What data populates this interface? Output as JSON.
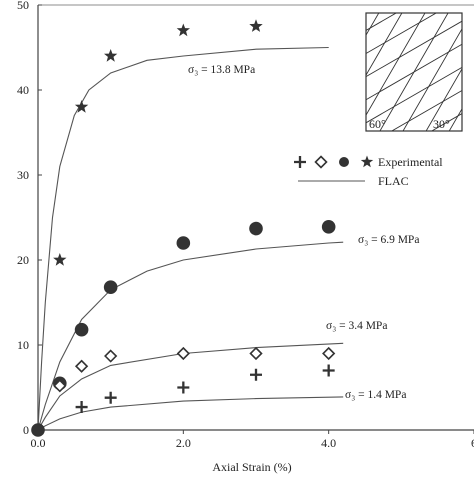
{
  "chart_data": {
    "type": "scatter",
    "xlabel": "Axial Strain (%)",
    "ylabel": "",
    "xlim": [
      0,
      6
    ],
    "ylim": [
      0,
      50
    ],
    "x_ticks": [
      0,
      2,
      4,
      6
    ],
    "x_tick_labels": [
      "0.0",
      "2.0",
      "4.0",
      "6"
    ],
    "y_ticks": [
      0,
      10,
      20,
      30,
      40,
      50
    ],
    "y_tick_labels": [
      "0",
      "10",
      "20",
      "30",
      "40",
      "50"
    ],
    "grid": false,
    "legend": {
      "position": "right",
      "entries": [
        {
          "label": "Experimental",
          "markers": [
            "plus",
            "diamond",
            "circle",
            "star"
          ]
        },
        {
          "label": "FLAC",
          "style": "line"
        }
      ]
    },
    "inset_labels": [
      "60°",
      "30°"
    ],
    "series": [
      {
        "sigma_label": "σ₃ = 13.8 MPa",
        "marker": "star",
        "experimental": [
          [
            0.3,
            20
          ],
          [
            0.6,
            38
          ],
          [
            1.0,
            44
          ],
          [
            2.0,
            47
          ],
          [
            3.0,
            47.5
          ]
        ],
        "flac": [
          [
            0,
            0
          ],
          [
            0.05,
            8
          ],
          [
            0.1,
            15
          ],
          [
            0.2,
            25
          ],
          [
            0.3,
            31
          ],
          [
            0.5,
            37
          ],
          [
            0.7,
            40
          ],
          [
            1.0,
            42
          ],
          [
            1.5,
            43.5
          ],
          [
            2.0,
            44
          ],
          [
            3.0,
            44.8
          ],
          [
            4.0,
            45
          ]
        ]
      },
      {
        "sigma_label": "σ₃ = 6.9 MPa",
        "marker": "circle",
        "experimental": [
          [
            0,
            0
          ],
          [
            0.3,
            5.5
          ],
          [
            0.6,
            11.8
          ],
          [
            1.0,
            16.8
          ],
          [
            2.0,
            22
          ],
          [
            3.0,
            23.7
          ],
          [
            4.0,
            23.9
          ]
        ],
        "flac": [
          [
            0,
            0
          ],
          [
            0.1,
            3
          ],
          [
            0.3,
            8
          ],
          [
            0.6,
            13
          ],
          [
            1.0,
            16.5
          ],
          [
            1.5,
            18.7
          ],
          [
            2.0,
            20
          ],
          [
            3.0,
            21.3
          ],
          [
            4.0,
            22
          ],
          [
            4.2,
            22.1
          ]
        ]
      },
      {
        "sigma_label": "σ₃ = 3.4 MPa",
        "marker": "diamond",
        "experimental": [
          [
            0.3,
            5.2
          ],
          [
            0.6,
            7.5
          ],
          [
            1.0,
            8.7
          ],
          [
            2.0,
            9
          ],
          [
            3.0,
            9
          ],
          [
            4.0,
            9
          ]
        ],
        "flac": [
          [
            0,
            0
          ],
          [
            0.1,
            1.5
          ],
          [
            0.3,
            4
          ],
          [
            0.6,
            6
          ],
          [
            1.0,
            7.6
          ],
          [
            2.0,
            9
          ],
          [
            3.0,
            9.7
          ],
          [
            4.2,
            10.2
          ]
        ]
      },
      {
        "sigma_label": "σ₃ = 1.4 MPa",
        "marker": "plus",
        "experimental": [
          [
            0.6,
            2.7
          ],
          [
            1.0,
            3.8
          ],
          [
            2.0,
            5
          ],
          [
            3.0,
            6.5
          ],
          [
            4.0,
            7
          ]
        ],
        "flac": [
          [
            0,
            0
          ],
          [
            0.1,
            0.5
          ],
          [
            0.3,
            1.3
          ],
          [
            0.6,
            2.1
          ],
          [
            1.0,
            2.7
          ],
          [
            2.0,
            3.4
          ],
          [
            3.0,
            3.7
          ],
          [
            4.2,
            3.9
          ]
        ]
      }
    ]
  }
}
